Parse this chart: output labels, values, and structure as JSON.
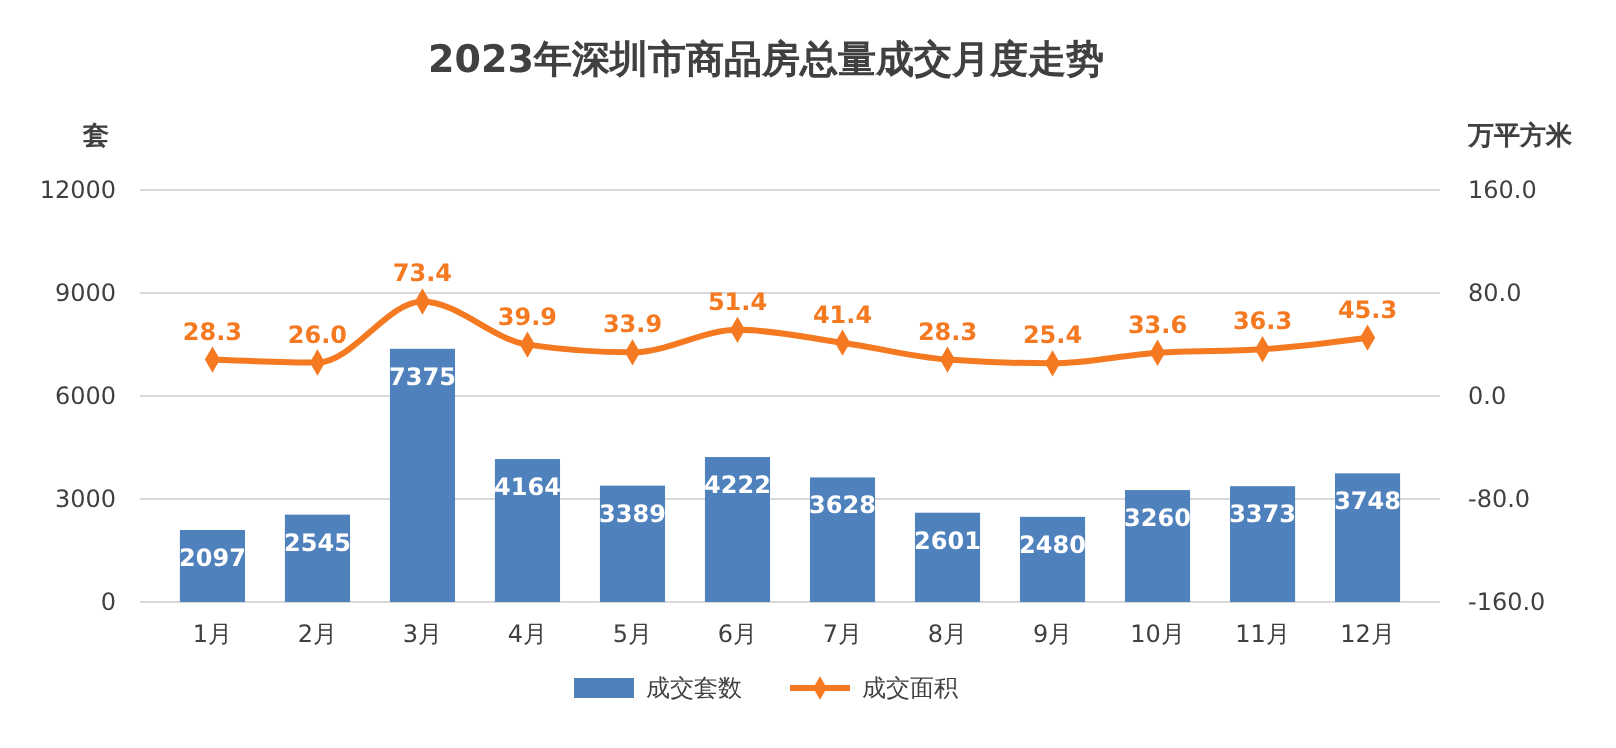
{
  "chart_data": {
    "type": "bar",
    "title": "2023年深圳市商品房总量成交月度走势",
    "ylabel": "套",
    "y2label": "万平方米",
    "categories": [
      "1月",
      "2月",
      "3月",
      "4月",
      "5月",
      "6月",
      "7月",
      "8月",
      "9月",
      "10月",
      "11月",
      "12月"
    ],
    "series": [
      {
        "name": "成交套数",
        "color": "#4f81bd",
        "values": [
          2097,
          2545,
          7375,
          4164,
          3389,
          4222,
          3628,
          2601,
          2480,
          3260,
          3373,
          3748
        ]
      },
      {
        "name": "成交面积",
        "type": "line",
        "axis": "y2",
        "color": "#f47920",
        "marker": "diamond",
        "values": [
          28.3,
          26.0,
          73.4,
          39.9,
          33.9,
          51.4,
          41.4,
          28.3,
          25.4,
          33.6,
          36.3,
          45.3
        ],
        "value_labels": [
          "28.3",
          "26.0",
          "73.4",
          "39.9",
          "33.9",
          "51.4",
          "41.4",
          "28.3",
          "25.4",
          "33.6",
          "36.3",
          "45.3"
        ]
      }
    ],
    "ylim": [
      0,
      12000
    ],
    "yticks": [
      0,
      3000,
      6000,
      9000,
      12000
    ],
    "y2lim": [
      -160,
      160
    ],
    "y2ticks": [
      {
        "value": -160,
        "label": "-160.0"
      },
      {
        "value": -80,
        "label": "-80.0"
      },
      {
        "value": 0,
        "label": "0.0"
      },
      {
        "value": 80,
        "label": "80.0"
      },
      {
        "value": 160,
        "label": "160.0"
      }
    ],
    "grid": "y",
    "legend": "bottom",
    "data_labels": true
  }
}
